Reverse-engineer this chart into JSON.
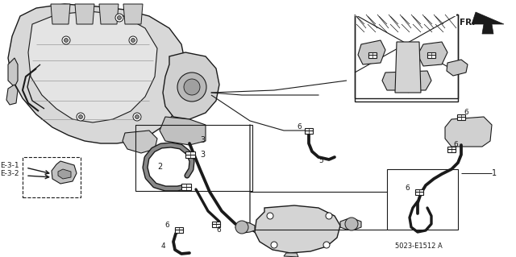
{
  "background_color": "#ffffff",
  "line_color": "#1a1a1a",
  "part_number": "5023-E1512 A",
  "direction_label": "FR.",
  "fig_width": 6.4,
  "fig_height": 3.19,
  "dpi": 100,
  "engine_color": "#e8e8e8",
  "engine_dark": "#c8c8c8",
  "hose_lw": 3.2,
  "thin_lw": 0.7,
  "med_lw": 1.1
}
